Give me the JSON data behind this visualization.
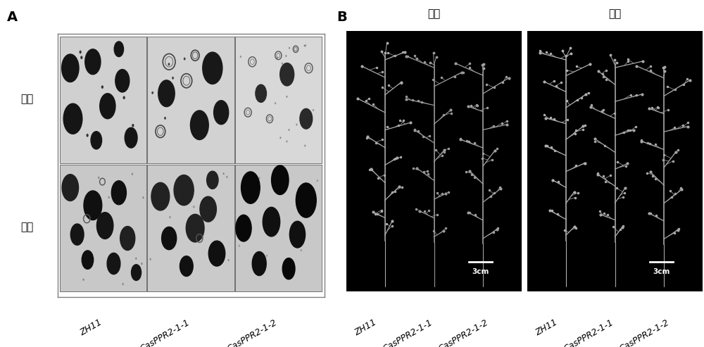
{
  "panel_A_label": "A",
  "panel_B_label": "B",
  "row_labels": [
    "高温",
    "低温"
  ],
  "col_labels_A": [
    "ZH11",
    "CasPPR2-1-1",
    "CasPPR2-1-2"
  ],
  "col_labels_B_high": [
    "ZH11",
    "CasPPR2-1-1",
    "CasPPR2-1-2"
  ],
  "col_labels_B_low": [
    "ZH11",
    "CasPPR2-1-1",
    "CasPPR2-1-2"
  ],
  "B_high_title": "高温",
  "B_low_title": "低温",
  "scale_bar_text": "3cm",
  "bg_color_white": "#ffffff",
  "bg_color_black": "#000000",
  "micro_bg_high": [
    "#d0d0d0",
    "#d2d2d2",
    "#cecece"
  ],
  "micro_bg_low": [
    "#c8c8c8",
    "#cacaca",
    "#c8c8c8"
  ],
  "text_color_black": "#000000",
  "text_color_white": "#ffffff",
  "font_size_panel_label": 14,
  "font_size_row_label": 11,
  "font_size_col_label": 9,
  "font_size_title": 11,
  "font_size_scale": 8,
  "pollen_dark": "#111111",
  "pollen_outline": "#444444",
  "pollen_shrunken": "#555555",
  "panicle_color_high": [
    "#aaaaaa",
    "#999999",
    "#a0a0a0"
  ],
  "panicle_color_low": [
    "#b0b0b0",
    "#a8a8a8",
    "#a8a8a8"
  ]
}
